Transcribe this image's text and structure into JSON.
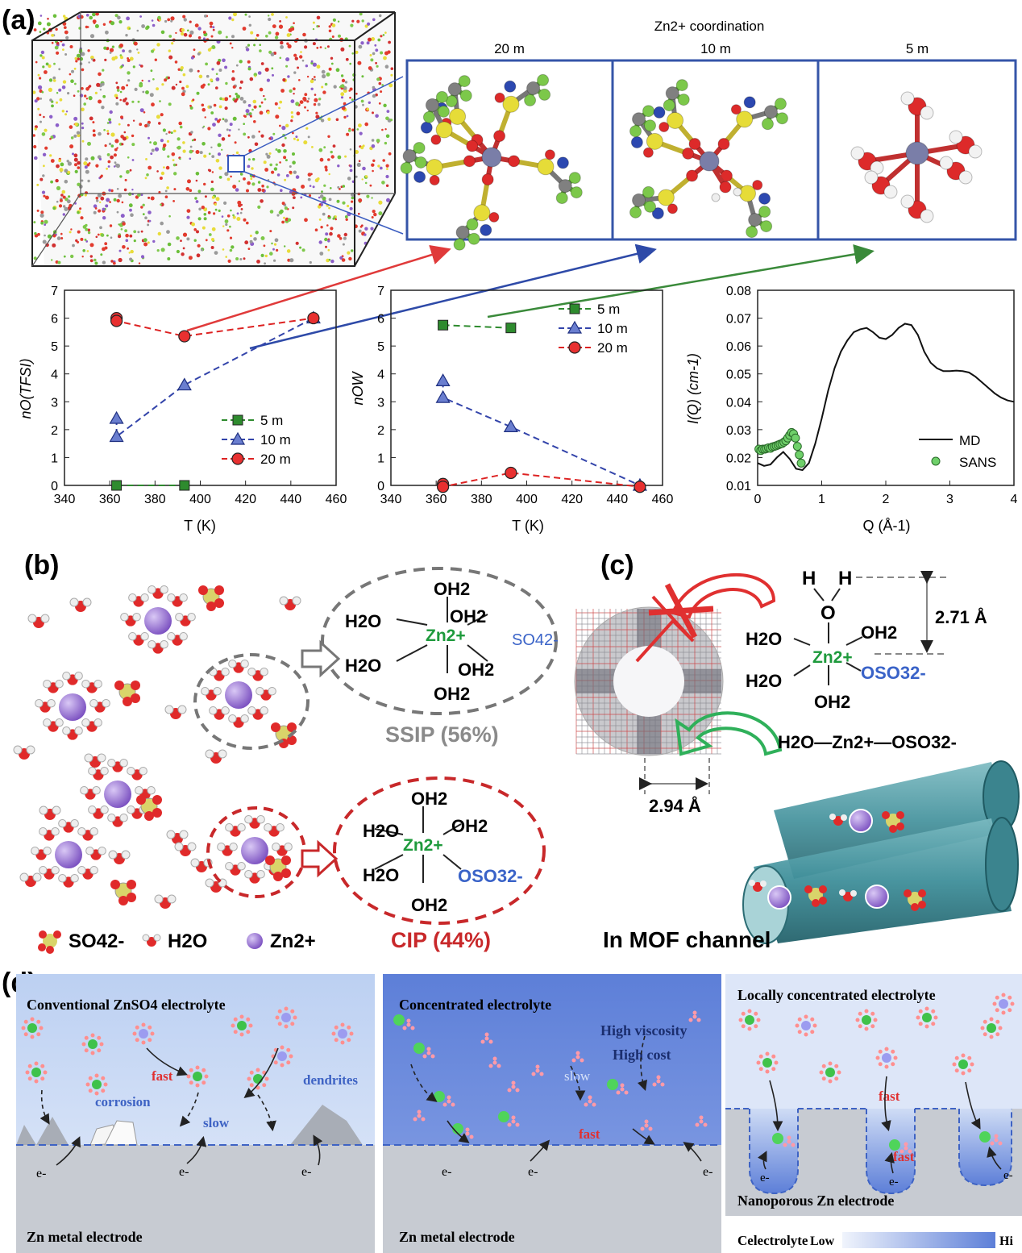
{
  "panel_labels": {
    "a": "(a)",
    "b": "(b)",
    "c": "(c)",
    "d": "(d)"
  },
  "panel_a": {
    "coordination_title": "Zn2+ coordination",
    "columns": [
      "20 m",
      "10 m",
      "5 m"
    ],
    "chart1": {
      "type": "line",
      "ylabel": "nO(TFSI)",
      "xlabel": "T (K)",
      "xlim": [
        340,
        460
      ],
      "ylim": [
        0,
        7
      ],
      "xticks": [
        340,
        360,
        380,
        400,
        420,
        440,
        460
      ],
      "yticks": [
        0,
        1,
        2,
        3,
        4,
        5,
        6,
        7
      ],
      "legend": [
        "5 m",
        "10 m",
        "20 m"
      ],
      "series": [
        {
          "name": "5 m",
          "color": "#2e8b2e",
          "marker": "square",
          "x": [
            363,
            393
          ],
          "y": [
            0,
            0
          ]
        },
        {
          "name": "10 m",
          "color": "#3344aa",
          "marker": "triangle",
          "x": [
            363,
            363,
            393,
            450
          ],
          "y": [
            2.4,
            1.75,
            3.6,
            6.0
          ]
        },
        {
          "name": "20 m",
          "color": "#dd2222",
          "marker": "circle",
          "x": [
            363,
            363,
            393,
            450
          ],
          "y": [
            6.0,
            5.9,
            5.35,
            6.0
          ]
        }
      ]
    },
    "chart2": {
      "type": "line",
      "ylabel": "nOW",
      "xlabel": "T (K)",
      "xlim": [
        340,
        460
      ],
      "ylim": [
        0,
        7
      ],
      "xticks": [
        340,
        360,
        380,
        400,
        420,
        440,
        460
      ],
      "yticks": [
        0,
        1,
        2,
        3,
        4,
        5,
        6,
        7
      ],
      "legend": [
        "5 m",
        "10 m",
        "20 m"
      ],
      "series": [
        {
          "name": "5 m",
          "color": "#2e8b2e",
          "marker": "square",
          "x": [
            363,
            393
          ],
          "y": [
            5.75,
            5.65
          ]
        },
        {
          "name": "10 m",
          "color": "#3344aa",
          "marker": "triangle",
          "x": [
            363,
            363,
            393,
            450
          ],
          "y": [
            3.75,
            3.15,
            2.1,
            0.0
          ]
        },
        {
          "name": "20 m",
          "color": "#dd2222",
          "marker": "circle",
          "x": [
            363,
            363,
            393,
            450
          ],
          "y": [
            0.05,
            -0.05,
            0.45,
            -0.05
          ]
        }
      ]
    },
    "chart3": {
      "type": "line",
      "ylabel": "I(Q) (cm-1)",
      "xlabel": "Q (Å-1)",
      "xlim": [
        0,
        4
      ],
      "ylim": [
        0.01,
        0.08
      ],
      "xticks": [
        0,
        1,
        2,
        3,
        4
      ],
      "yticks": [
        "0.01",
        "0.02",
        "0.03",
        "0.04",
        "0.05",
        "0.06",
        "0.07",
        "0.08"
      ],
      "legend": [
        "MD",
        "SANS"
      ],
      "md_curve": {
        "x": [
          0,
          0.1,
          0.2,
          0.3,
          0.4,
          0.5,
          0.6,
          0.7,
          0.8,
          0.9,
          1.0,
          1.1,
          1.2,
          1.3,
          1.4,
          1.5,
          1.6,
          1.7,
          1.8,
          1.9,
          2.0,
          2.1,
          2.2,
          2.3,
          2.4,
          2.5,
          2.6,
          2.7,
          2.8,
          2.9,
          3.0,
          3.1,
          3.2,
          3.3,
          3.4,
          3.5,
          3.6,
          3.7,
          3.8,
          3.9,
          4.0
        ],
        "y": [
          0.018,
          0.017,
          0.0175,
          0.02,
          0.022,
          0.0195,
          0.016,
          0.0155,
          0.018,
          0.025,
          0.034,
          0.044,
          0.052,
          0.058,
          0.062,
          0.065,
          0.066,
          0.0665,
          0.065,
          0.063,
          0.0625,
          0.064,
          0.0665,
          0.068,
          0.0675,
          0.064,
          0.058,
          0.054,
          0.052,
          0.051,
          0.051,
          0.0512,
          0.051,
          0.0505,
          0.049,
          0.047,
          0.045,
          0.043,
          0.0415,
          0.0405,
          0.04
        ]
      },
      "sans_points": {
        "x": [
          0.02,
          0.05,
          0.08,
          0.11,
          0.14,
          0.17,
          0.2,
          0.23,
          0.26,
          0.29,
          0.32,
          0.35,
          0.38,
          0.41,
          0.44,
          0.47,
          0.5,
          0.53,
          0.56,
          0.59,
          0.62,
          0.65,
          0.68
        ],
        "y": [
          0.023,
          0.0225,
          0.023,
          0.023,
          0.0232,
          0.0235,
          0.0233,
          0.0238,
          0.024,
          0.0242,
          0.0245,
          0.0248,
          0.025,
          0.0255,
          0.026,
          0.027,
          0.028,
          0.029,
          0.0285,
          0.027,
          0.024,
          0.021,
          0.018
        ]
      }
    }
  },
  "panel_b": {
    "ssip_label": "SSIP (56%)",
    "cip_label": "CIP (44%)",
    "oh2": "OH2",
    "h2o": "H2O",
    "zn": "Zn2+",
    "so4": "SO42-",
    "oso3": "OSO32-",
    "legend": {
      "so4": "SO42-",
      "h2o": "H2O",
      "zn": "Zn2+"
    }
  },
  "panel_c": {
    "dim1": "2.71 Å",
    "dim2": "2.94 Å",
    "chain": "H2O—Zn2+—OSO32-",
    "caption": "In MOF channel"
  },
  "panel_d": {
    "box1": {
      "title": "Conventional ZnSO4 electrolyte",
      "labels": [
        "fast",
        "corrosion",
        "slow",
        "dendrites"
      ],
      "electrode": "Zn metal electrode"
    },
    "box2": {
      "title": "Concentrated electrolyte",
      "labels": [
        "High viscosity",
        "High cost",
        "slow",
        "fast"
      ],
      "electrode": "Zn metal electrode"
    },
    "box3": {
      "title": "Locally concentrated electrolyte",
      "labels": [
        "fast",
        "fast"
      ],
      "electrode": "Nanoporous Zn electrode",
      "scale_label": "Celectrolyte",
      "low": "Low",
      "high": "Hi"
    },
    "electron": "e-"
  }
}
